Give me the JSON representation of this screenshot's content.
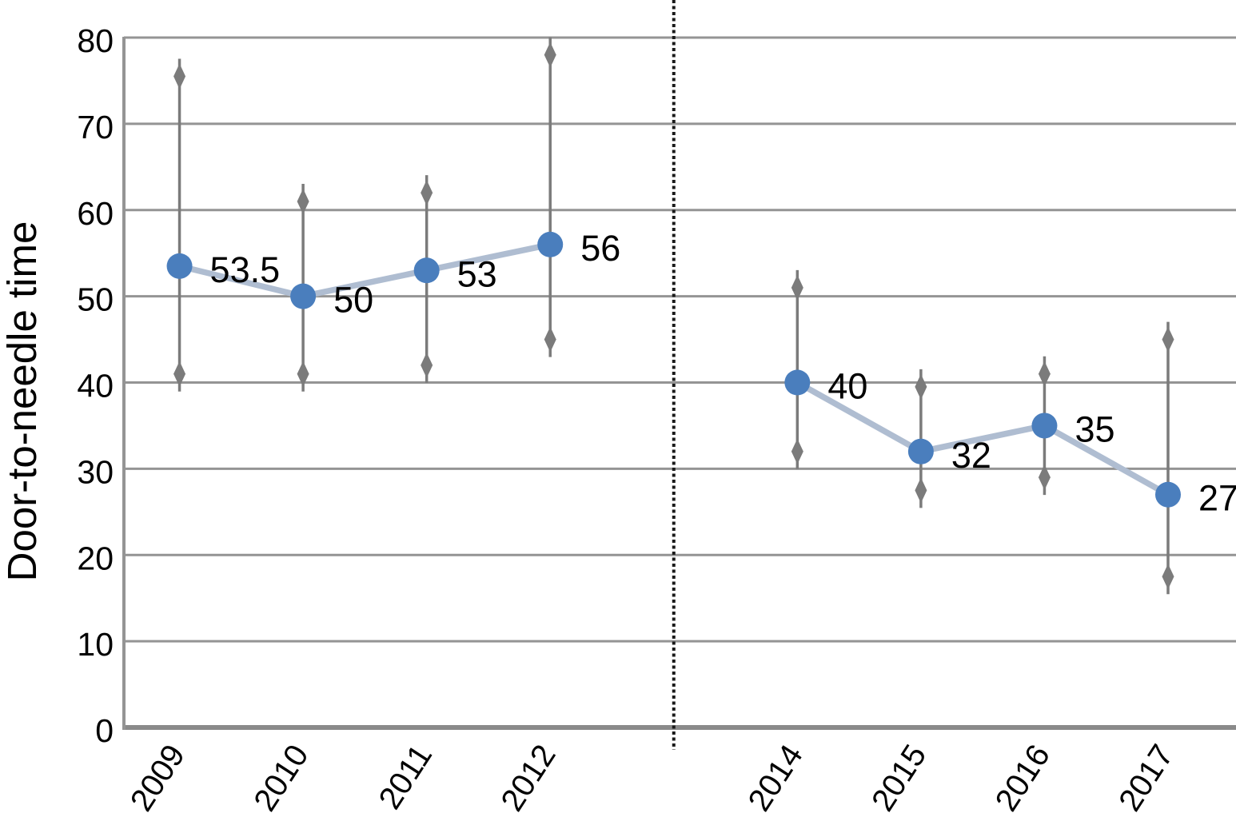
{
  "chart_data": {
    "type": "line",
    "title": "",
    "ylabel": "Door-to-needle time",
    "xlabel": "",
    "ylim": [
      0,
      80
    ],
    "yticks": [
      0,
      10,
      20,
      30,
      40,
      50,
      60,
      70,
      80
    ],
    "grid": true,
    "legend": "none",
    "divider": {
      "style": "dotted-vertical",
      "between": [
        "2012",
        "2014"
      ]
    },
    "segments": [
      {
        "name": "2009-2012",
        "points": [
          {
            "year": "2009",
            "value": 53.5,
            "label": "53.5",
            "low": 41,
            "high": 75.5
          },
          {
            "year": "2010",
            "value": 50,
            "label": "50",
            "low": 41,
            "high": 61
          },
          {
            "year": "2011",
            "value": 53,
            "label": "53",
            "low": 42,
            "high": 62
          },
          {
            "year": "2012",
            "value": 56,
            "label": "56",
            "low": 45,
            "high": 78
          }
        ]
      },
      {
        "name": "2014-2017",
        "points": [
          {
            "year": "2014",
            "value": 40,
            "label": "40",
            "low": 32,
            "high": 51
          },
          {
            "year": "2015",
            "value": 32,
            "label": "32",
            "low": 27.5,
            "high": 39.5
          },
          {
            "year": "2016",
            "value": 35,
            "label": "35",
            "low": 29,
            "high": 41
          },
          {
            "year": "2017",
            "value": 27,
            "label": "27",
            "low": 17.5,
            "high": 45
          }
        ]
      }
    ],
    "colors": {
      "marker": "#4a7ebd",
      "series_line": "#afbdd1",
      "error_bar": "#7b7b7b",
      "gridline": "#949494",
      "axis": "#8a8a8a",
      "divider": "#1a1a1a",
      "text": "#000000"
    }
  }
}
